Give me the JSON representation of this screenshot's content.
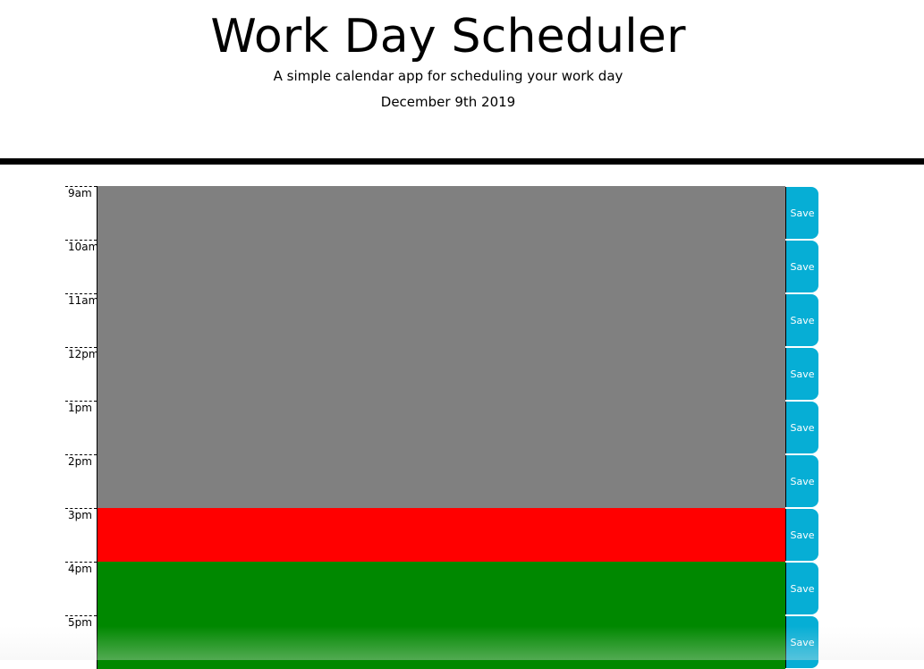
{
  "header": {
    "title": "Work Day Scheduler",
    "lead": "A simple calendar app for scheduling your work day",
    "current_day": "December 9th 2019"
  },
  "colors": {
    "past": "#808080",
    "present": "#ff0000",
    "future": "#008800",
    "save_button": "#06aed5",
    "divider": "#000000"
  },
  "schedule": {
    "rows": [
      {
        "hour": "9am",
        "status": "past",
        "text": "",
        "save_label": "Save"
      },
      {
        "hour": "10am",
        "status": "past",
        "text": "",
        "save_label": "Save"
      },
      {
        "hour": "11am",
        "status": "past",
        "text": "",
        "save_label": "Save"
      },
      {
        "hour": "12pm",
        "status": "past",
        "text": "",
        "save_label": "Save"
      },
      {
        "hour": "1pm",
        "status": "past",
        "text": "",
        "save_label": "Save"
      },
      {
        "hour": "2pm",
        "status": "past",
        "text": "",
        "save_label": "Save"
      },
      {
        "hour": "3pm",
        "status": "present",
        "text": "",
        "save_label": "Save"
      },
      {
        "hour": "4pm",
        "status": "future",
        "text": "",
        "save_label": "Save"
      },
      {
        "hour": "5pm",
        "status": "future",
        "text": "",
        "save_label": "Save"
      }
    ]
  }
}
